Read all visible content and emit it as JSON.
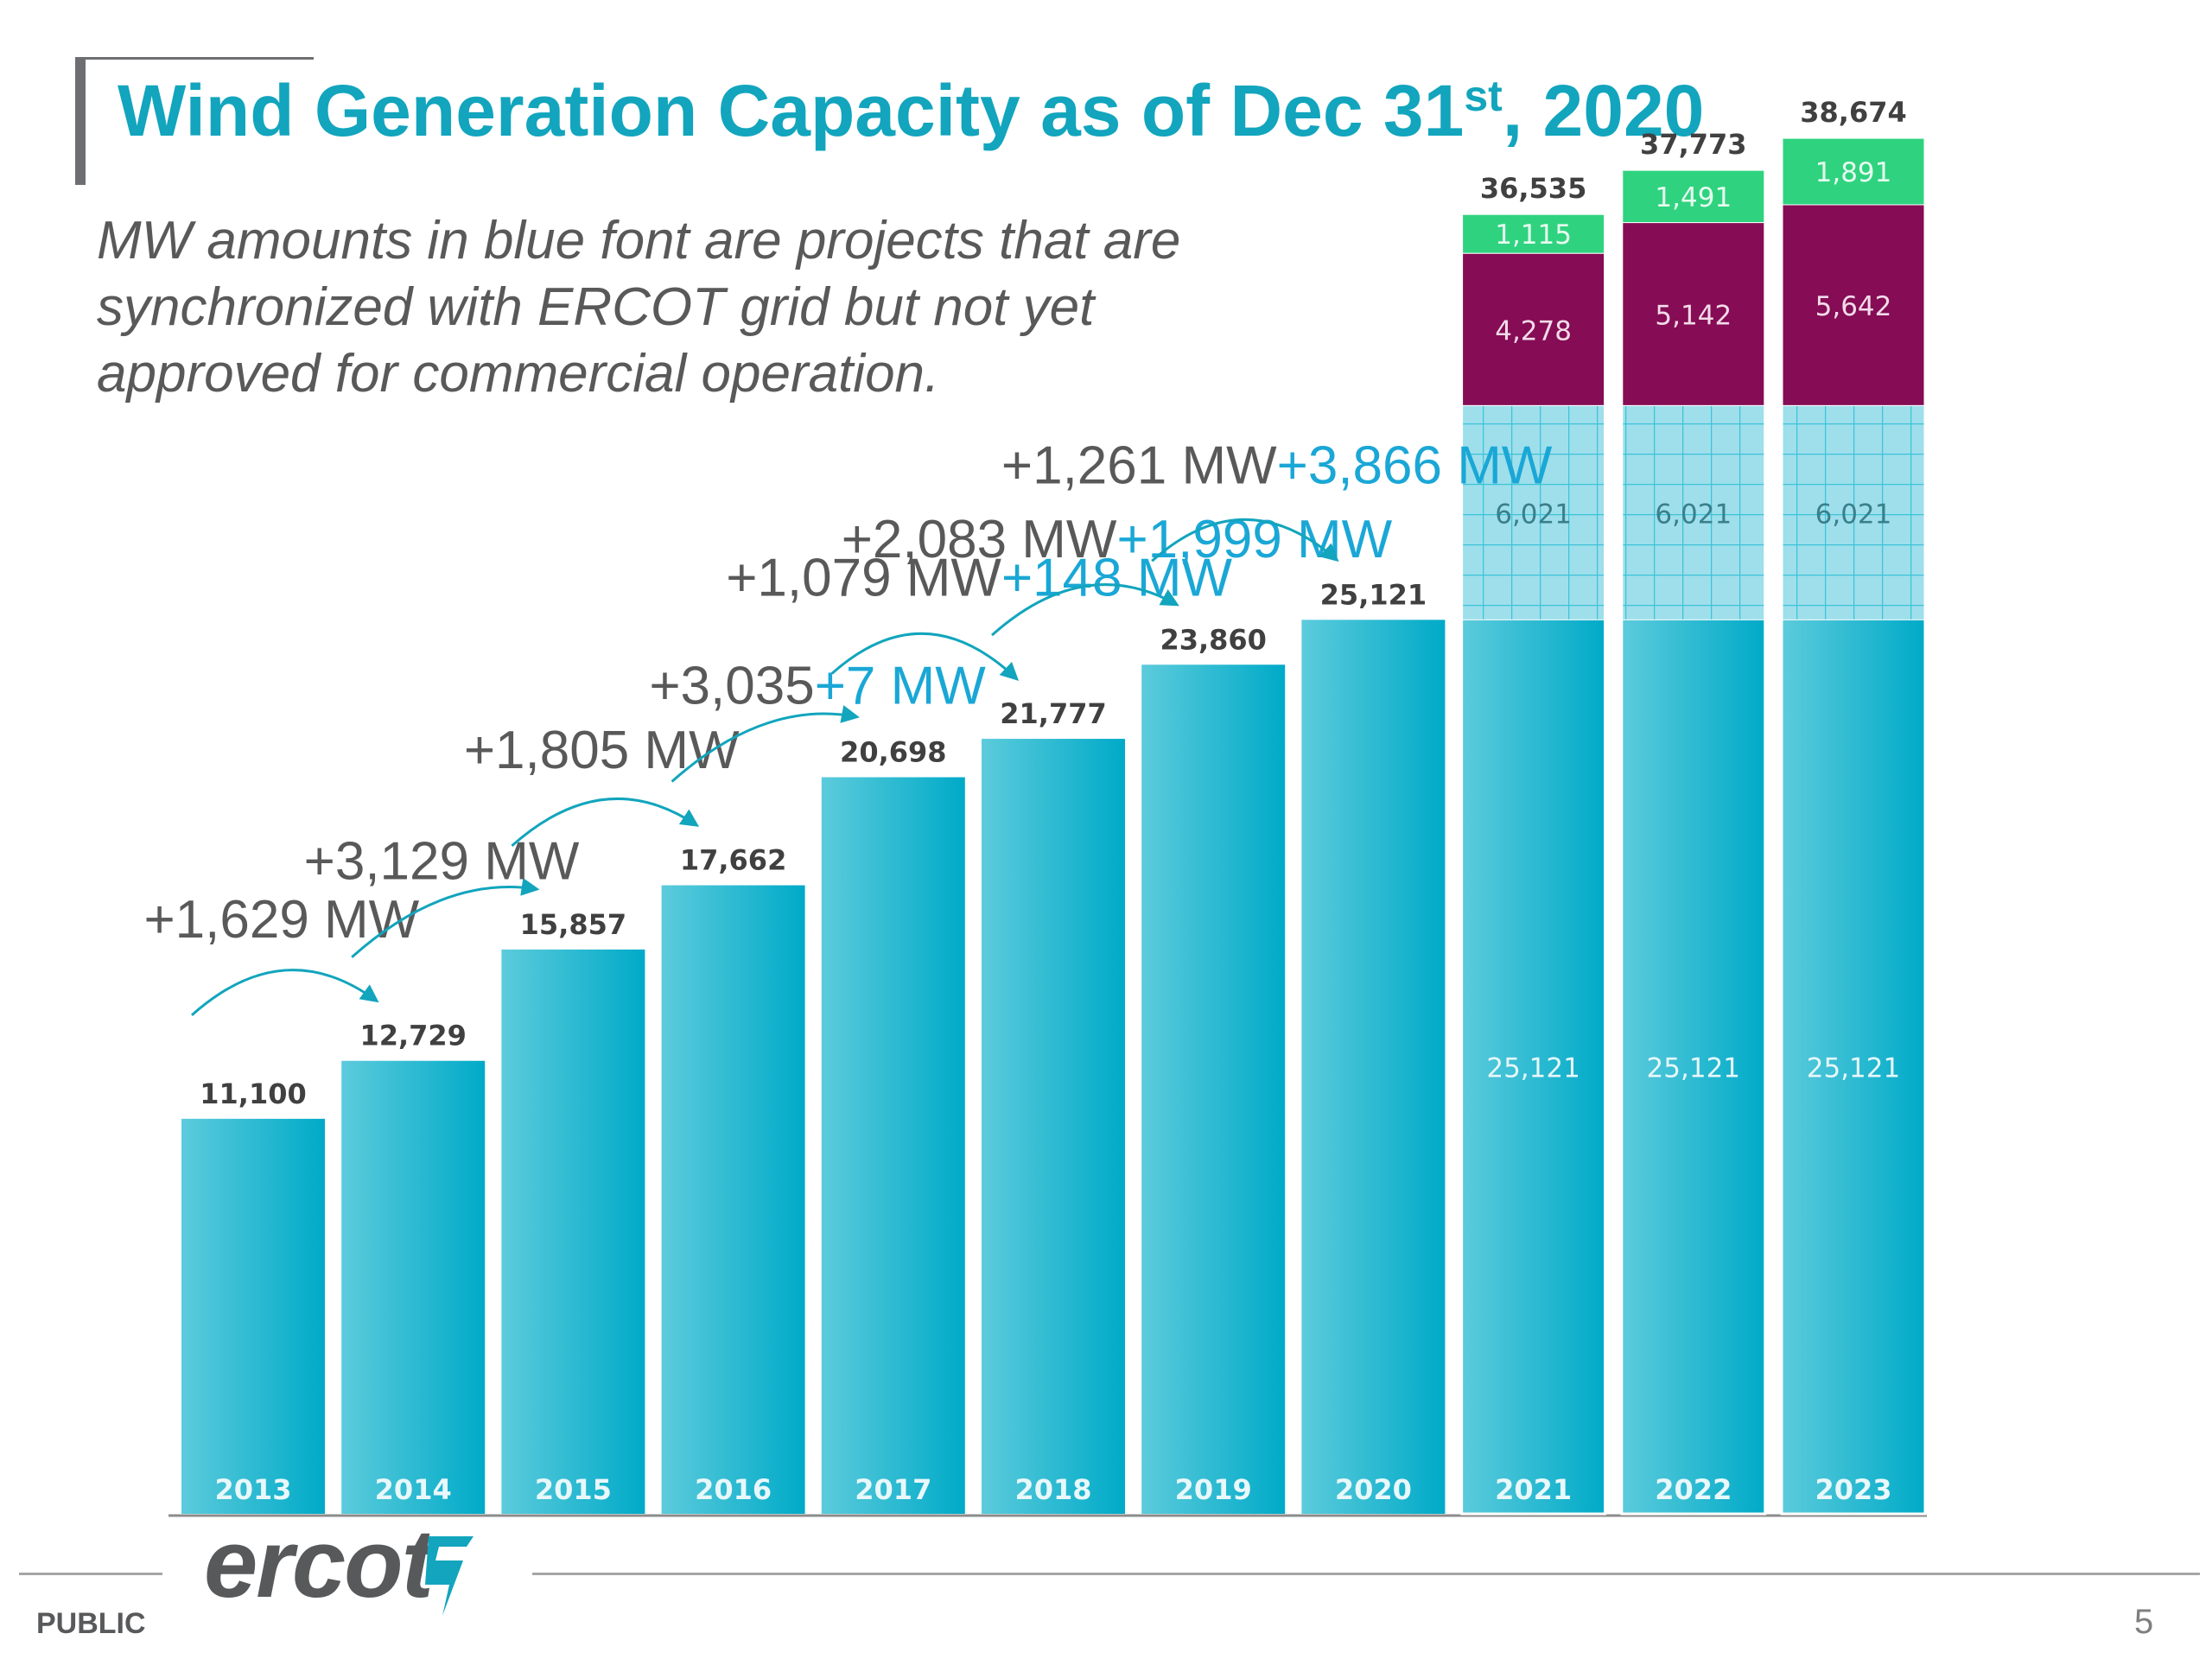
{
  "slide": {
    "title_main": "Wind Generation Capacity as of Dec 31",
    "title_sup": "st",
    "title_end": ", 2020",
    "subtitle_lines": [
      "MW amounts in blue font are projects that are",
      "synchronized with ERCOT grid but not yet",
      "approved for commercial operation."
    ],
    "logo_text": "ercot",
    "footer_left": "PUBLIC",
    "page_number": "5"
  },
  "colors": {
    "title": "#12a5bd",
    "bar_base": "#20b6cc",
    "bar_hatched": "#9edfeb",
    "bar_purple": "#850c55",
    "bar_green": "#2fd37f",
    "annotation_gray": "#595959",
    "annotation_blue": "#1aa7d6"
  },
  "chart_data": {
    "type": "bar",
    "stacked": true,
    "categories": [
      "2013",
      "2014",
      "2015",
      "2016",
      "2017",
      "2018",
      "2019",
      "2020",
      "2021",
      "2022",
      "2023"
    ],
    "series": [
      {
        "values": [
          11100,
          12729,
          15857,
          17662,
          20698,
          21777,
          23860,
          25121,
          25121,
          25121,
          25121
        ],
        "labels": [
          "",
          "",
          "",
          "",
          "",
          "",
          "",
          "",
          "25,121",
          "25,121",
          "25,121"
        ]
      },
      {
        "values": [
          0,
          0,
          0,
          0,
          0,
          0,
          0,
          0,
          6021,
          6021,
          6021
        ],
        "labels": [
          "",
          "",
          "",
          "",
          "",
          "",
          "",
          "",
          "6,021",
          "6,021",
          "6,021"
        ]
      },
      {
        "values": [
          0,
          0,
          0,
          0,
          0,
          0,
          0,
          0,
          4278,
          5142,
          5642
        ],
        "labels": [
          "",
          "",
          "",
          "",
          "",
          "",
          "",
          "",
          "4,278",
          "5,142",
          "5,642"
        ]
      },
      {
        "values": [
          0,
          0,
          0,
          0,
          0,
          0,
          0,
          0,
          1115,
          1491,
          1891
        ],
        "labels": [
          "",
          "",
          "",
          "",
          "",
          "",
          "",
          "",
          "1,115",
          "1,491",
          "1,891"
        ]
      }
    ],
    "totals": [
      "11,100",
      "12,729",
      "15,857",
      "17,662",
      "20,698",
      "21,777",
      "23,860",
      "25,121",
      "36,535",
      "37,773",
      "38,674"
    ],
    "ylim": [
      0,
      40000
    ],
    "grid": false,
    "annotations": [
      {
        "from": "2013",
        "to": "2014",
        "gray": "+1,629 MW",
        "blue": ""
      },
      {
        "from": "2014",
        "to": "2015",
        "gray": "+3,129 MW",
        "blue": ""
      },
      {
        "from": "2015",
        "to": "2016",
        "gray": "+1,805 MW",
        "blue": ""
      },
      {
        "from": "2016",
        "to": "2017",
        "gray": "+3,035",
        "blue": "+7 MW"
      },
      {
        "from": "2017",
        "to": "2018",
        "gray": "+1,079 MW",
        "blue": "+148 MW"
      },
      {
        "from": "2018",
        "to": "2019",
        "gray": "+2,083 MW",
        "blue": "+1,999 MW"
      },
      {
        "from": "2019",
        "to": "2020",
        "gray": "+1,261 MW",
        "blue": "+3,866 MW"
      }
    ]
  }
}
